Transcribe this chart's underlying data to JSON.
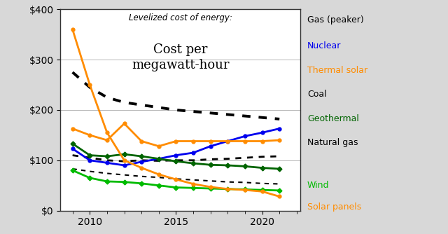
{
  "title_line1": "Levelized cost of energy:",
  "title_line2": "Cost per\nmegawatt-hour",
  "years_gas_peaker": [
    2009,
    2010,
    2011,
    2012,
    2013,
    2014,
    2015,
    2016,
    2017,
    2018,
    2019,
    2020,
    2021
  ],
  "gas_peaker": [
    275,
    245,
    225,
    215,
    210,
    205,
    200,
    197,
    194,
    191,
    188,
    185,
    182
  ],
  "years_coal": [
    2009,
    2010,
    2011,
    2012,
    2013,
    2014,
    2015,
    2016,
    2017,
    2018,
    2019,
    2020,
    2021
  ],
  "coal": [
    110,
    105,
    100,
    98,
    100,
    99,
    100,
    100,
    102,
    103,
    105,
    107,
    108
  ],
  "years_nuclear": [
    2009,
    2010,
    2011,
    2012,
    2013,
    2014,
    2015,
    2016,
    2017,
    2018,
    2019,
    2020,
    2021
  ],
  "nuclear": [
    123,
    100,
    95,
    90,
    97,
    103,
    110,
    115,
    128,
    138,
    148,
    155,
    163
  ],
  "years_geothermal": [
    2009,
    2010,
    2011,
    2012,
    2013,
    2014,
    2015,
    2016,
    2017,
    2018,
    2019,
    2020,
    2021
  ],
  "geothermal": [
    133,
    110,
    108,
    112,
    108,
    103,
    98,
    94,
    91,
    90,
    88,
    85,
    83
  ],
  "years_nat_gas": [
    2009,
    2010,
    2011,
    2012,
    2013,
    2014,
    2015,
    2016,
    2017,
    2018,
    2019,
    2020,
    2021
  ],
  "natural_gas": [
    83,
    78,
    74,
    71,
    68,
    66,
    63,
    61,
    59,
    57,
    56,
    54,
    53
  ],
  "years_therm_sol": [
    2009,
    2010,
    2011,
    2012,
    2013,
    2014,
    2015,
    2016,
    2017,
    2018,
    2019,
    2020,
    2021
  ],
  "thermal_solar": [
    163,
    150,
    140,
    173,
    138,
    128,
    138,
    138,
    138,
    138,
    138,
    138,
    140
  ],
  "years_wind": [
    2009,
    2010,
    2011,
    2012,
    2013,
    2014,
    2015,
    2016,
    2017,
    2018,
    2019,
    2020,
    2021
  ],
  "wind": [
    80,
    65,
    58,
    57,
    54,
    50,
    46,
    45,
    44,
    43,
    42,
    41,
    40
  ],
  "years_solar": [
    2009,
    2010,
    2011,
    2012,
    2013,
    2014,
    2015,
    2016,
    2017,
    2018,
    2019,
    2020,
    2021
  ],
  "solar_panels": [
    360,
    250,
    155,
    100,
    85,
    72,
    62,
    53,
    47,
    43,
    41,
    38,
    28
  ],
  "color_gas_peaker": "#000000",
  "color_coal": "#000000",
  "color_nuclear": "#0000ee",
  "color_geothermal": "#006400",
  "color_natural_gas": "#000000",
  "color_therm_solar": "#FF8C00",
  "color_wind": "#00bb00",
  "color_solar": "#FF8C00",
  "bg_color": "#d8d8d8",
  "plot_bg": "#ffffff",
  "ylim": [
    0,
    400
  ],
  "xlim": [
    2008.3,
    2022.2
  ]
}
